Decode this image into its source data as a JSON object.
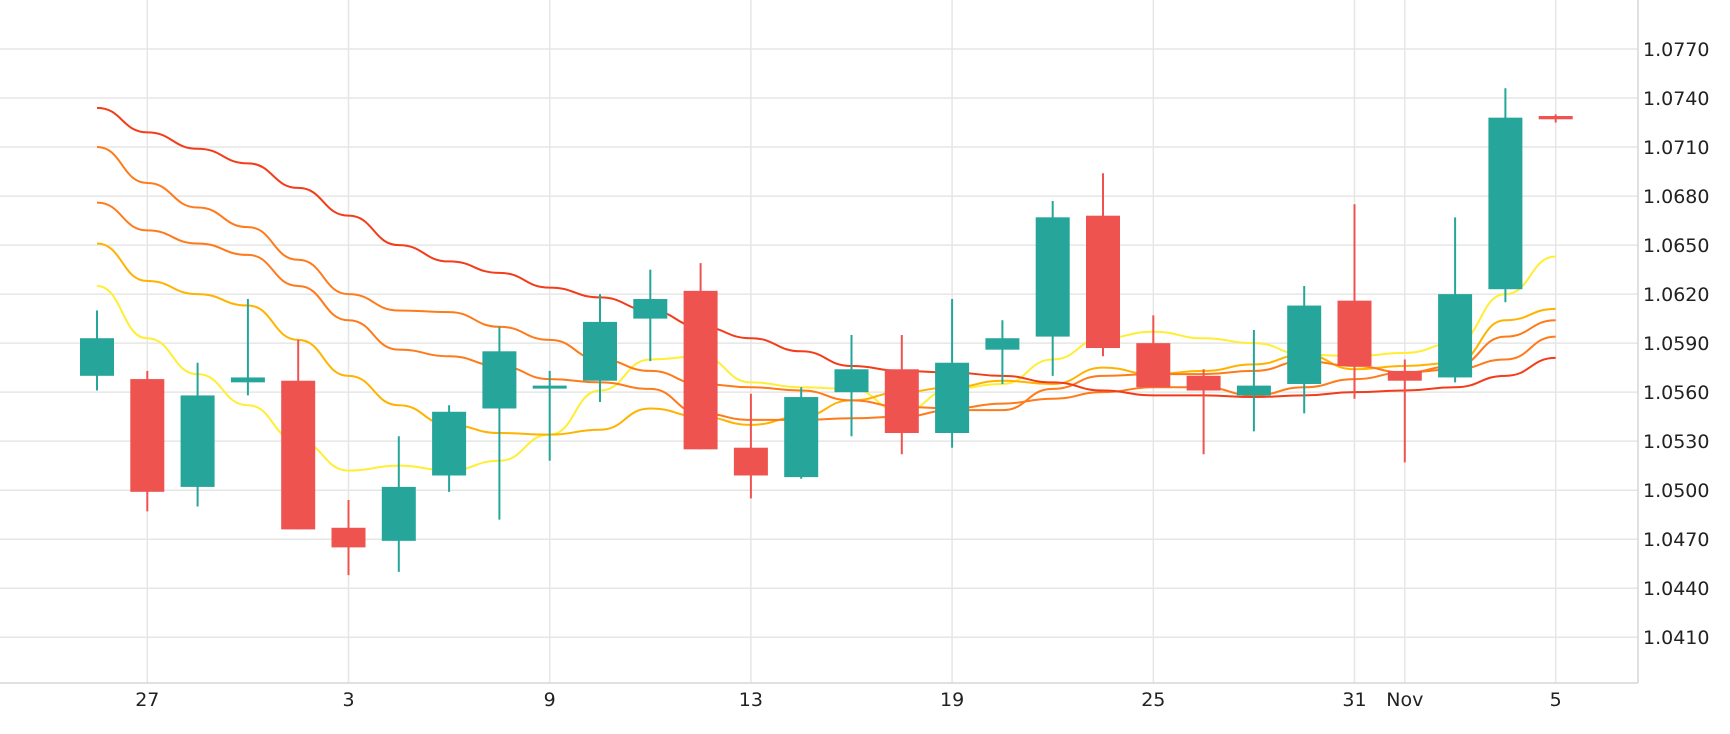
{
  "chart_data": {
    "type": "candlestick",
    "colors": {
      "up": "#26a69a",
      "down": "#ef5350",
      "grid": "#e6e6e6",
      "text": "#222222",
      "ma_yellow": "#ffee33",
      "ma_amber": "#ffb300",
      "ma_orange": "#ff7a1a",
      "ma_red": "#f23c1a"
    },
    "grid": true,
    "y_axis": {
      "position": "right",
      "range": [
        1.0382,
        1.08
      ]
    },
    "y_ticks": [
      "1.0770",
      "1.0740",
      "1.0710",
      "1.0680",
      "1.0650",
      "1.0620",
      "1.0590",
      "1.0560",
      "1.0530",
      "1.0500",
      "1.0470",
      "1.0440",
      "1.0410"
    ],
    "x_ticks": [
      {
        "label": "27",
        "at": 1
      },
      {
        "label": "3",
        "at": 5
      },
      {
        "label": "9",
        "at": 9
      },
      {
        "label": "13",
        "at": 13
      },
      {
        "label": "19",
        "at": 17
      },
      {
        "label": "25",
        "at": 21
      },
      {
        "label": "31",
        "at": 25
      },
      {
        "label": "Nov",
        "at": 26
      },
      {
        "label": "5",
        "at": 29
      }
    ],
    "candles": [
      {
        "open": 1.057,
        "high": 1.061,
        "low": 1.0561,
        "close": 1.0593
      },
      {
        "open": 1.0568,
        "high": 1.0573,
        "low": 1.0487,
        "close": 1.0499
      },
      {
        "open": 1.0502,
        "high": 1.0578,
        "low": 1.049,
        "close": 1.0558
      },
      {
        "open": 1.0566,
        "high": 1.0617,
        "low": 1.0558,
        "close": 1.0569
      },
      {
        "open": 1.0567,
        "high": 1.0592,
        "low": 1.0476,
        "close": 1.0476
      },
      {
        "open": 1.0477,
        "high": 1.0494,
        "low": 1.0448,
        "close": 1.0465
      },
      {
        "open": 1.0469,
        "high": 1.0533,
        "low": 1.045,
        "close": 1.0502
      },
      {
        "open": 1.0509,
        "high": 1.0552,
        "low": 1.0499,
        "close": 1.0548
      },
      {
        "open": 1.055,
        "high": 1.06,
        "low": 1.0482,
        "close": 1.0585
      },
      {
        "open": 1.0563,
        "high": 1.0573,
        "low": 1.0518,
        "close": 1.0564
      },
      {
        "open": 1.0567,
        "high": 1.062,
        "low": 1.0554,
        "close": 1.0603
      },
      {
        "open": 1.0605,
        "high": 1.0635,
        "low": 1.0579,
        "close": 1.0617
      },
      {
        "open": 1.0622,
        "high": 1.0639,
        "low": 1.0525,
        "close": 1.0525
      },
      {
        "open": 1.0526,
        "high": 1.0559,
        "low": 1.0495,
        "close": 1.0509
      },
      {
        "open": 1.0508,
        "high": 1.0563,
        "low": 1.0507,
        "close": 1.0557
      },
      {
        "open": 1.056,
        "high": 1.0595,
        "low": 1.0533,
        "close": 1.0574
      },
      {
        "open": 1.0574,
        "high": 1.0595,
        "low": 1.0522,
        "close": 1.0535
      },
      {
        "open": 1.0535,
        "high": 1.0617,
        "low": 1.0526,
        "close": 1.0578
      },
      {
        "open": 1.0586,
        "high": 1.0604,
        "low": 1.0565,
        "close": 1.0593
      },
      {
        "open": 1.0594,
        "high": 1.0677,
        "low": 1.057,
        "close": 1.0667
      },
      {
        "open": 1.0668,
        "high": 1.0694,
        "low": 1.0582,
        "close": 1.0587
      },
      {
        "open": 1.059,
        "high": 1.0607,
        "low": 1.0563,
        "close": 1.0563
      },
      {
        "open": 1.057,
        "high": 1.0574,
        "low": 1.0522,
        "close": 1.0561
      },
      {
        "open": 1.0558,
        "high": 1.0598,
        "low": 1.0536,
        "close": 1.0564
      },
      {
        "open": 1.0565,
        "high": 1.0625,
        "low": 1.0547,
        "close": 1.0613
      },
      {
        "open": 1.0616,
        "high": 1.0675,
        "low": 1.0556,
        "close": 1.0576
      },
      {
        "open": 1.0573,
        "high": 1.058,
        "low": 1.0517,
        "close": 1.0567
      },
      {
        "open": 1.0569,
        "high": 1.0667,
        "low": 1.0566,
        "close": 1.062
      },
      {
        "open": 1.0623,
        "high": 1.0746,
        "low": 1.0615,
        "close": 1.0728
      },
      {
        "open": 1.0729,
        "high": 1.073,
        "low": 1.0725,
        "close": 1.0727
      }
    ],
    "moving_averages": [
      {
        "color_key": "ma_yellow",
        "values": [
          1.0625,
          1.0593,
          1.0571,
          1.0552,
          1.053,
          1.0512,
          1.0515,
          1.0512,
          1.0518,
          1.0534,
          1.0561,
          1.058,
          1.0582,
          1.0566,
          1.0563,
          1.0562,
          1.0548,
          1.0562,
          1.0565,
          1.058,
          1.0593,
          1.0597,
          1.0593,
          1.059,
          1.0583,
          1.0582,
          1.0584,
          1.059,
          1.062,
          1.0643
        ]
      },
      {
        "color_key": "ma_amber",
        "values": [
          1.0651,
          1.0628,
          1.062,
          1.0613,
          1.0592,
          1.057,
          1.0552,
          1.054,
          1.0535,
          1.0534,
          1.0537,
          1.055,
          1.0545,
          1.054,
          1.0545,
          1.0555,
          1.056,
          1.0563,
          1.0567,
          1.0565,
          1.0575,
          1.0571,
          1.0573,
          1.0577,
          1.0583,
          1.0574,
          1.0576,
          1.0578,
          1.0604,
          1.0611
        ]
      },
      {
        "color_key": "ma_orange",
        "values": [
          1.0676,
          1.0659,
          1.0651,
          1.0644,
          1.0625,
          1.0604,
          1.0586,
          1.0582,
          1.0576,
          1.0568,
          1.0566,
          1.0562,
          1.0547,
          1.0543,
          1.0543,
          1.0544,
          1.0545,
          1.0549,
          1.0549,
          1.0562,
          1.057,
          1.0571,
          1.0571,
          1.0573,
          1.0579,
          1.0576,
          1.0572,
          1.0576,
          1.0594,
          1.0604
        ]
      },
      {
        "color_key": "ma_orange",
        "values": [
          1.071,
          1.0688,
          1.0673,
          1.0661,
          1.0641,
          1.062,
          1.061,
          1.0609,
          1.06,
          1.0592,
          1.058,
          1.0573,
          1.0565,
          1.0563,
          1.0561,
          1.0555,
          1.0551,
          1.055,
          1.0553,
          1.0556,
          1.056,
          1.0563,
          1.0563,
          1.0558,
          1.0563,
          1.0568,
          1.0572,
          1.0574,
          1.058,
          1.0594
        ]
      },
      {
        "color_key": "ma_red",
        "values": [
          1.0734,
          1.0719,
          1.0709,
          1.07,
          1.0685,
          1.0668,
          1.065,
          1.064,
          1.0633,
          1.0624,
          1.0618,
          1.061,
          1.06,
          1.0593,
          1.0585,
          1.0576,
          1.0573,
          1.0572,
          1.057,
          1.0566,
          1.0561,
          1.0558,
          1.0558,
          1.0557,
          1.0558,
          1.056,
          1.0561,
          1.0563,
          1.057,
          1.0581
        ]
      }
    ]
  }
}
